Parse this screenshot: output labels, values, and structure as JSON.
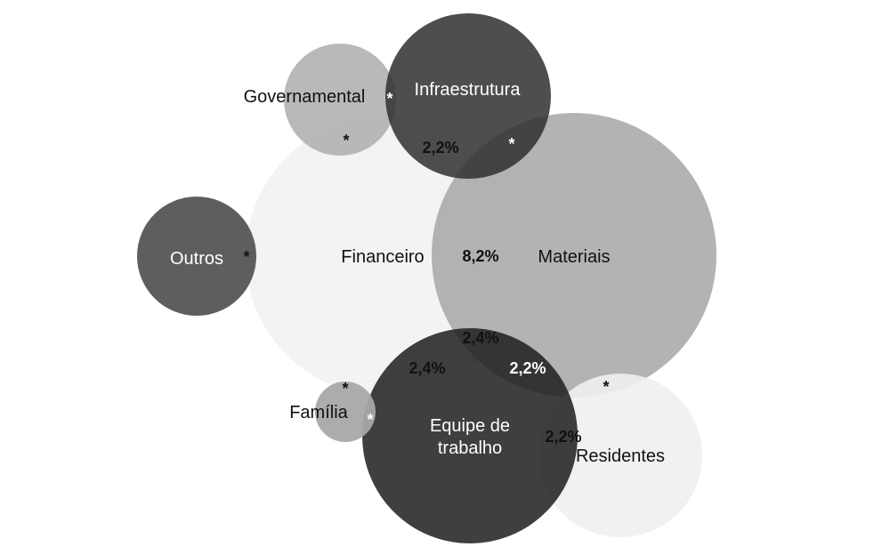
{
  "diagram": {
    "circles": {
      "governamental": {
        "label": "Governamental",
        "color": "#b1b1b1"
      },
      "infraestrutura": {
        "label": "Infraestrutura",
        "color": "#2f2f2f"
      },
      "financeiro": {
        "label": "Financeiro",
        "color": "#f2f2f2"
      },
      "materiais": {
        "label": "Materiais",
        "color": "#a6a6a6"
      },
      "outros": {
        "label": "Outros",
        "color": "#555555"
      },
      "familia": {
        "label": "Família",
        "color": "#a8a8a8"
      },
      "equipe": {
        "label_line1": "Equipe de",
        "label_line2": "trabalho",
        "color": "#1f1f1f"
      },
      "residentes": {
        "label": "Residentes",
        "color": "#efefef"
      }
    },
    "intersections": {
      "financeiro_materiais": "8,2%",
      "financeiro_infraestrutura": "2,2%",
      "financeiro_materiais_equipe": "2,4%",
      "financeiro_equipe": "2,4%",
      "materiais_equipe": "2,2%",
      "equipe_residentes": "2,2%"
    },
    "marker": "*"
  }
}
